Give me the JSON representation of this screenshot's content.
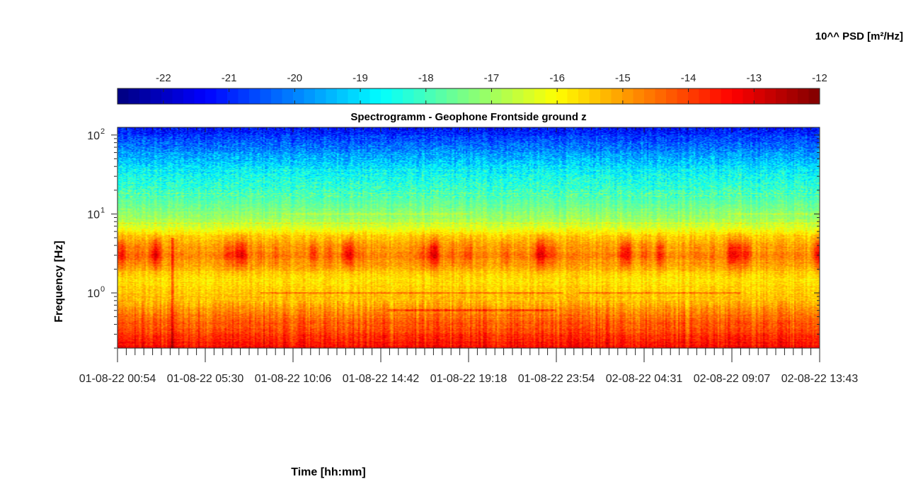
{
  "chart_data": {
    "type": "heatmap",
    "title": "Spectrogramm - Geophone Frontside ground z",
    "xlabel": "Time [hh:mm]",
    "ylabel": "Frequency [Hz]",
    "yscale": "log",
    "ylim": [
      0.2,
      125
    ],
    "y_ticks": [
      {
        "value": 1,
        "base": "10",
        "exp": "0"
      },
      {
        "value": 10,
        "base": "10",
        "exp": "1"
      },
      {
        "value": 100,
        "base": "10",
        "exp": "2"
      }
    ],
    "x_ticks": [
      "01-08-22  00:54",
      "01-08-22  05:30",
      "01-08-22  10:06",
      "01-08-22  14:42",
      "01-08-22  19:18",
      "01-08-22  23:54",
      "02-08-22  04:31",
      "02-08-22  09:07",
      "02-08-22  13:43"
    ],
    "colorbar": {
      "label": "10^^ PSD [m²/Hz]",
      "colormap": "jet",
      "range": [
        -22.7,
        -12
      ],
      "ticks": [
        "-22",
        "-21",
        "-20",
        "-19",
        "-18",
        "-17",
        "-16",
        "-15",
        "-14",
        "-13",
        "-12"
      ]
    },
    "psd_profile_by_frequency": [
      {
        "freq_hz": 0.2,
        "psd_log10": -13.3
      },
      {
        "freq_hz": 0.3,
        "psd_log10": -13.9
      },
      {
        "freq_hz": 0.5,
        "psd_log10": -14.5
      },
      {
        "freq_hz": 0.8,
        "psd_log10": -15.3
      },
      {
        "freq_hz": 1.5,
        "psd_log10": -15.7
      },
      {
        "freq_hz": 3,
        "psd_log10": -14.7
      },
      {
        "freq_hz": 5,
        "psd_log10": -15.4
      },
      {
        "freq_hz": 8,
        "psd_log10": -16.9
      },
      {
        "freq_hz": 15,
        "psd_log10": -17.8
      },
      {
        "freq_hz": 30,
        "psd_log10": -18.5
      },
      {
        "freq_hz": 60,
        "psd_log10": -19.8
      },
      {
        "freq_hz": 125,
        "psd_log10": -21.3
      }
    ]
  }
}
